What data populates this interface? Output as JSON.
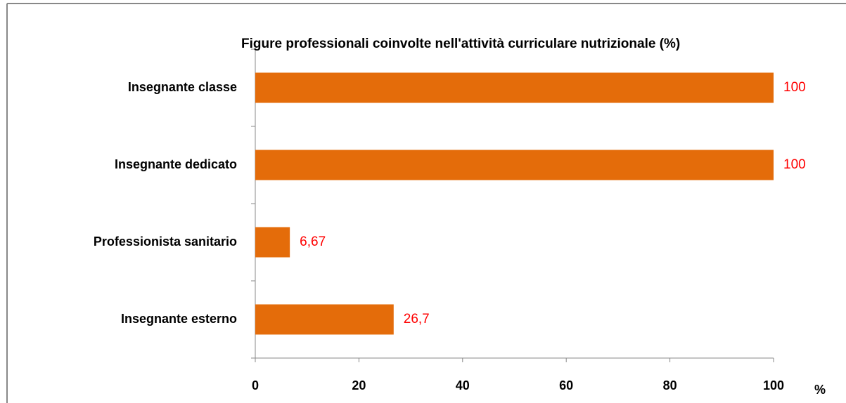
{
  "chart_data": {
    "type": "bar",
    "orientation": "horizontal",
    "title": "Figure professionali coinvolte nell'attività curriculare nutrizionale (%)",
    "categories": [
      "Insegnante classe",
      "Insegnante dedicato",
      "Professionista sanitario",
      "Insegnante esterno"
    ],
    "values": [
      100,
      100,
      6.67,
      26.7
    ],
    "value_labels": [
      "100",
      "100",
      "6,67",
      "26,7"
    ],
    "color": "#e46c0a",
    "label_color": "#ff0000",
    "x_label": "%",
    "xlim": [
      0,
      100
    ],
    "xticks": [
      0,
      20,
      40,
      60,
      80,
      100
    ]
  }
}
